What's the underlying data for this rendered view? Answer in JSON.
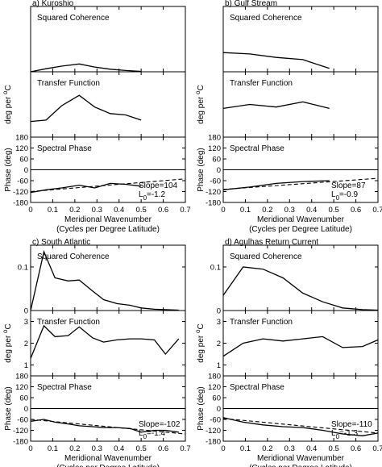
{
  "chart_data": [
    {
      "panel_title": "a) Kuroshio",
      "type": "line",
      "xlabel": "Meridional Wavenumber",
      "xlabel2": "(Cycles per Degree Latitude)",
      "xlim": [
        0,
        0.7
      ],
      "xticks": [
        "0",
        "0.1",
        "0.2",
        "0.3",
        "0.4",
        "0.5",
        "0.6",
        "0.7"
      ],
      "subplots": {
        "coherence": {
          "label": "Squared Coherence",
          "ylim": [
            0,
            0.15
          ],
          "yticks": [],
          "x": [
            0.0,
            0.07,
            0.14,
            0.22,
            0.29,
            0.36,
            0.43,
            0.5
          ],
          "y": [
            0.0,
            0.007,
            0.013,
            0.018,
            0.011,
            0.006,
            0.003,
            0.001
          ]
        },
        "transfer": {
          "label": "Transfer Function",
          "ylabel": "deg per °C",
          "ylim": [
            0.5,
            3
          ],
          "yticks": [],
          "x": [
            0.0,
            0.07,
            0.14,
            0.22,
            0.29,
            0.36,
            0.43,
            0.5
          ],
          "y": [
            1.1,
            1.15,
            1.7,
            2.1,
            1.65,
            1.4,
            1.35,
            1.15
          ]
        },
        "phase": {
          "label": "Spectral Phase",
          "ylabel": "Phase (deg)",
          "ylim": [
            -180,
            180
          ],
          "yticks": [
            "180",
            "120",
            "60",
            "0",
            "-60",
            "-120",
            "-180"
          ],
          "x": [
            0.0,
            0.07,
            0.14,
            0.22,
            0.29,
            0.36,
            0.43,
            0.5
          ],
          "y": [
            -125,
            -110,
            -100,
            -85,
            -100,
            -75,
            -80,
            -90
          ],
          "fit": {
            "x": [
              0.0,
              0.7
            ],
            "y": [
              -120,
              -50
            ]
          },
          "annotation": "Slope=104",
          "annotation2": "L",
          "annotation2_sub": "0",
          "annotation2_val": "=-1.2"
        }
      }
    },
    {
      "panel_title": "b) Gulf Stream",
      "type": "line",
      "xlabel": "Meridional Wavenumber",
      "xlabel2": "(Cycles per Degree Latitude)",
      "xlim": [
        0,
        0.7
      ],
      "xticks": [
        "0",
        "0.1",
        "0.2",
        "0.3",
        "0.4",
        "0.5",
        "0.6",
        "0.7"
      ],
      "subplots": {
        "coherence": {
          "label": "Squared Coherence",
          "ylim": [
            0,
            0.15
          ],
          "yticks": [],
          "x": [
            0.0,
            0.12,
            0.24,
            0.36,
            0.48
          ],
          "y": [
            0.044,
            0.041,
            0.033,
            0.028,
            0.008
          ]
        },
        "transfer": {
          "label": "Transfer Function",
          "ylabel": "deg per °C",
          "ylim": [
            0.5,
            3
          ],
          "yticks": [],
          "x": [
            0.0,
            0.12,
            0.24,
            0.36,
            0.48
          ],
          "y": [
            1.6,
            1.75,
            1.65,
            1.85,
            1.6
          ]
        },
        "phase": {
          "label": "Spectral Phase",
          "ylabel": "Phase (deg)",
          "ylim": [
            -180,
            180
          ],
          "yticks": [
            "180",
            "120",
            "60",
            "0",
            "-60",
            "-120",
            "-180"
          ],
          "x": [
            0.0,
            0.12,
            0.24,
            0.36,
            0.48
          ],
          "y": [
            -110,
            -95,
            -75,
            -65,
            -60
          ],
          "fit": {
            "x": [
              0.0,
              0.7
            ],
            "y": [
              -108,
              -47
            ]
          },
          "annotation": "Slope=87",
          "annotation2": "L",
          "annotation2_sub": "0",
          "annotation2_val": "=-0.9"
        }
      }
    },
    {
      "panel_title": "c) South Atlantic",
      "type": "line",
      "xlabel": "Meridional Wavenumber",
      "xlabel2": "(Cycles per Degree Latitude)",
      "xlim": [
        0,
        0.7
      ],
      "xticks": [
        "0",
        "0.1",
        "0.2",
        "0.3",
        "0.4",
        "0.5",
        "0.6",
        "0.7"
      ],
      "subplots": {
        "coherence": {
          "label": "Squared Coherence",
          "ylim": [
            0,
            0.15
          ],
          "yticks": [
            "0.1",
            "0"
          ],
          "x": [
            0.0,
            0.06,
            0.11,
            0.17,
            0.22,
            0.28,
            0.33,
            0.39,
            0.45,
            0.5,
            0.56,
            0.61,
            0.67
          ],
          "y": [
            0.0,
            0.135,
            0.075,
            0.068,
            0.07,
            0.045,
            0.025,
            0.016,
            0.012,
            0.006,
            0.003,
            0.002,
            0.001
          ]
        },
        "transfer": {
          "label": "Transfer Function",
          "ylabel": "deg per °C",
          "ylim": [
            0.5,
            3.5
          ],
          "yticks": [
            "3",
            "2",
            "1"
          ],
          "x": [
            0.0,
            0.06,
            0.11,
            0.17,
            0.22,
            0.28,
            0.33,
            0.39,
            0.45,
            0.5,
            0.56,
            0.61,
            0.67
          ],
          "y": [
            1.3,
            2.8,
            2.3,
            2.35,
            2.75,
            2.25,
            2.05,
            2.15,
            2.2,
            2.2,
            2.15,
            1.5,
            2.2
          ]
        },
        "phase": {
          "label": "Spectral Phase",
          "ylabel": "Phase (deg)",
          "ylim": [
            -180,
            180
          ],
          "yticks": [
            "180",
            "120",
            "60",
            "0",
            "-60",
            "-120",
            "-180"
          ],
          "x": [
            0.0,
            0.06,
            0.11,
            0.17,
            0.22,
            0.28,
            0.33,
            0.39,
            0.45,
            0.5,
            0.56,
            0.61,
            0.67
          ],
          "y": [
            -70,
            -60,
            -75,
            -85,
            -95,
            -100,
            -105,
            -105,
            -110,
            -130,
            -120,
            -120,
            -130
          ],
          "fit": {
            "x": [
              0.0,
              0.7
            ],
            "y": [
              -60,
              -140
            ]
          },
          "annotation": "Slope=-102",
          "annotation2": "L",
          "annotation2_sub": "0",
          "annotation2_val": "=-1.4"
        }
      }
    },
    {
      "panel_title": "d) Agulhas Return Current",
      "type": "line",
      "xlabel": "Meridional Wavenumber",
      "xlabel2": "(Cycles per Degree Latitude)",
      "xlim": [
        0,
        0.7
      ],
      "xticks": [
        "0",
        "0.1",
        "0.2",
        "0.3",
        "0.4",
        "0.5",
        "0.6",
        "0.7"
      ],
      "subplots": {
        "coherence": {
          "label": "Squared Coherence",
          "ylim": [
            0,
            0.15
          ],
          "yticks": [
            "0.1",
            "0"
          ],
          "x": [
            0.0,
            0.09,
            0.18,
            0.27,
            0.36,
            0.45,
            0.54,
            0.63,
            0.7
          ],
          "y": [
            0.035,
            0.1,
            0.095,
            0.075,
            0.04,
            0.02,
            0.006,
            0.002,
            0.001
          ]
        },
        "transfer": {
          "label": "Transfer Function",
          "ylabel": "deg per °C",
          "ylim": [
            0.5,
            3.5
          ],
          "yticks": [
            "3",
            "2",
            "1"
          ],
          "x": [
            0.0,
            0.09,
            0.18,
            0.27,
            0.36,
            0.45,
            0.54,
            0.63,
            0.7
          ],
          "y": [
            1.4,
            2.0,
            2.2,
            2.1,
            2.2,
            2.3,
            1.8,
            1.85,
            2.15
          ]
        },
        "phase": {
          "label": "Spectral Phase",
          "ylabel": "Phase (deg)",
          "ylim": [
            -180,
            180
          ],
          "yticks": [
            "180",
            "120",
            "60",
            "0",
            "-60",
            "-120",
            "-180"
          ],
          "x": [
            0.0,
            0.09,
            0.18,
            0.27,
            0.36,
            0.45,
            0.54,
            0.63,
            0.7
          ],
          "y": [
            -50,
            -75,
            -90,
            -100,
            -105,
            -120,
            -140,
            -150,
            -135
          ],
          "fit": {
            "x": [
              0.0,
              0.7
            ],
            "y": [
              -55,
              -135
            ]
          },
          "annotation": "Slope=-110",
          "annotation2": "L",
          "annotation2_sub": "0",
          "annotation2_val": "=-1.3"
        }
      }
    }
  ]
}
